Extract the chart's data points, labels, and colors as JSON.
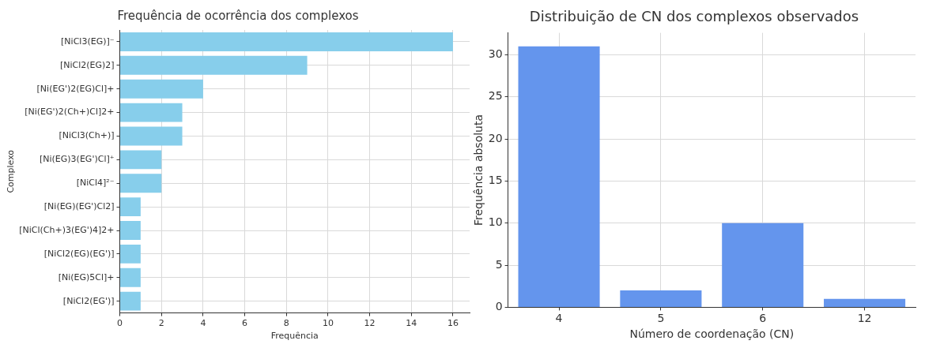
{
  "chart_data": [
    {
      "type": "bar",
      "title": "Frequência de ocorrência dos complexos",
      "xlabel": "Frequência",
      "ylabel": "Complexo",
      "orientation": "horizontal",
      "categories": [
        "[NiCl3(EG)]⁻",
        "[NiCl2(EG)2]",
        "[Ni(EG')2(EG)Cl]+",
        "[Ni(EG')2(Ch+)Cl]2+",
        "[NiCl3(Ch+)]",
        "[Ni(EG)3(EG')Cl]⁺",
        "[NiCl4]²⁻",
        "[Ni(EG)(EG')Cl2]",
        "[NiCl(Ch+)3(EG')4]2+",
        "[NiCl2(EG)(EG')]",
        "[Ni(EG)5Cl]+",
        "[NiCl2(EG')]"
      ],
      "values": [
        16,
        9,
        4,
        3,
        3,
        2,
        2,
        1,
        1,
        1,
        1,
        1
      ],
      "color": "#87ceeb",
      "xlim": [
        0,
        16.8
      ],
      "xticks": [
        0,
        2,
        4,
        6,
        8,
        10,
        12,
        14,
        16
      ],
      "grid": true,
      "legend": false
    },
    {
      "type": "bar",
      "title": "Distribuição de CN dos complexos observados",
      "xlabel": "Número de coordenação (CN)",
      "ylabel": "Frequência absoluta",
      "categories": [
        "4",
        "5",
        "6",
        "12"
      ],
      "values": [
        31,
        2,
        10,
        1
      ],
      "color": "#6495ed",
      "ylim": [
        0,
        32.6
      ],
      "yticks": [
        0,
        5,
        10,
        15,
        20,
        25,
        30
      ],
      "grid": true,
      "legend": false
    }
  ]
}
